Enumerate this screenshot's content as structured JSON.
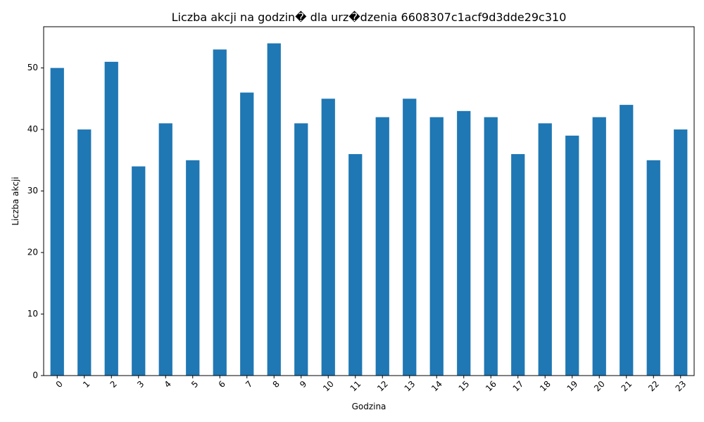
{
  "chart_data": {
    "type": "bar",
    "title": "Liczba akcji na godzin� dla urz�dzenia 6608307c1acf9d3dde29c310",
    "xlabel": "Godzina",
    "ylabel": "Liczba akcji",
    "categories": [
      "0",
      "1",
      "2",
      "3",
      "4",
      "5",
      "6",
      "7",
      "8",
      "9",
      "10",
      "11",
      "12",
      "13",
      "14",
      "15",
      "16",
      "17",
      "18",
      "19",
      "20",
      "21",
      "22",
      "23"
    ],
    "values": [
      50,
      40,
      51,
      34,
      41,
      35,
      53,
      46,
      54,
      41,
      45,
      36,
      42,
      45,
      42,
      43,
      42,
      36,
      41,
      39,
      42,
      44,
      35,
      40
    ],
    "ylim": [
      0,
      56.7
    ],
    "yticks": [
      0,
      10,
      20,
      30,
      40,
      50
    ],
    "bar_color": "#1f77b4",
    "grid": false,
    "legend": "none"
  }
}
